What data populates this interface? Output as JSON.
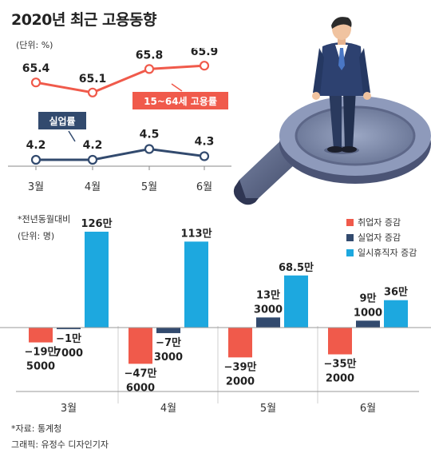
{
  "header": {
    "title": "2020년 최근 고용동향",
    "unit_top": "(단위: %)",
    "note": "*전년동월대비",
    "unit_bottom": "(단위: 명)",
    "source": "*자료: 통계청",
    "credit": "그래픽: 유정수 디자인기자"
  },
  "colors": {
    "employment": "#f05a4b",
    "unemployment": "#324a6e",
    "temporary_leave": "#1da8df"
  },
  "legend": [
    {
      "label": "취업자 증감",
      "color": "#f05a4b"
    },
    {
      "label": "실업자 증감",
      "color": "#324a6e"
    },
    {
      "label": "일시휴직자 증감",
      "color": "#1da8df"
    }
  ],
  "chart_data": [
    {
      "type": "line",
      "categories": [
        "3월",
        "4월",
        "5월",
        "6월"
      ],
      "series": [
        {
          "name": "15~64세 고용률",
          "values": [
            65.4,
            65.1,
            65.8,
            65.9
          ],
          "labels": [
            "65.4",
            "65.1",
            "65.8",
            "65.9"
          ]
        },
        {
          "name": "실업률",
          "values": [
            4.2,
            4.2,
            4.5,
            4.3
          ],
          "labels": [
            "4.2",
            "4.2",
            "4.5",
            "4.3"
          ]
        }
      ],
      "ylabel": "%"
    },
    {
      "type": "bar",
      "categories": [
        "3월",
        "4월",
        "5월",
        "6월"
      ],
      "series": [
        {
          "name": "취업자 증감",
          "values": [
            -195000,
            -476000,
            -392000,
            -352000
          ],
          "labels": [
            [
              "−19만",
              "5000"
            ],
            [
              "−47만",
              "6000"
            ],
            [
              "−39만",
              "2000"
            ],
            [
              "−35만",
              "2000"
            ]
          ]
        },
        {
          "name": "실업자 증감",
          "values": [
            -17000,
            -73000,
            133000,
            91000
          ],
          "labels": [
            [
              "−1만",
              "7000"
            ],
            [
              "−7만",
              "3000"
            ],
            [
              "13만",
              "3000"
            ],
            [
              "9만",
              "1000"
            ]
          ]
        },
        {
          "name": "일시휴직자 증감",
          "values": [
            1260000,
            1130000,
            685000,
            360000
          ],
          "labels": [
            [
              "126만"
            ],
            [
              "113만"
            ],
            [
              "68.5만"
            ],
            [
              "36만"
            ]
          ]
        }
      ],
      "ylabel": "명"
    }
  ]
}
